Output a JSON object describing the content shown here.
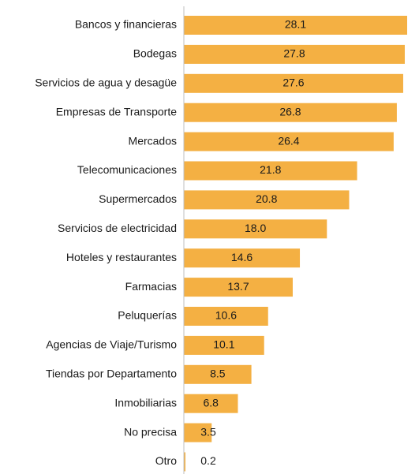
{
  "chart_data": {
    "type": "bar",
    "orientation": "horizontal",
    "categories": [
      "Bancos y financieras",
      "Bodegas",
      "Servicios de agua y desagüe",
      "Empresas de Transporte",
      "Mercados",
      "Telecomunicaciones",
      "Supermercados",
      "Servicios de electricidad",
      "Hoteles y restaurantes",
      "Farmacias",
      "Peluquerías",
      "Agencias de Viaje/Turismo",
      "Tiendas por Departamento",
      "Inmobiliarias",
      "No precisa",
      "Otro"
    ],
    "values": [
      28.1,
      27.8,
      27.6,
      26.8,
      26.4,
      21.8,
      20.8,
      18.0,
      14.6,
      13.7,
      10.6,
      10.1,
      8.5,
      6.8,
      3.5,
      0.2
    ],
    "value_labels": [
      "28.1",
      "27.8",
      "27.6",
      "26.8",
      "26.4",
      "21.8",
      "20.8",
      "18.0",
      "14.6",
      "13.7",
      "10.6",
      "10.1",
      "8.5",
      "6.8",
      "3.5",
      "0.2"
    ],
    "color": "#f4b043"
  }
}
